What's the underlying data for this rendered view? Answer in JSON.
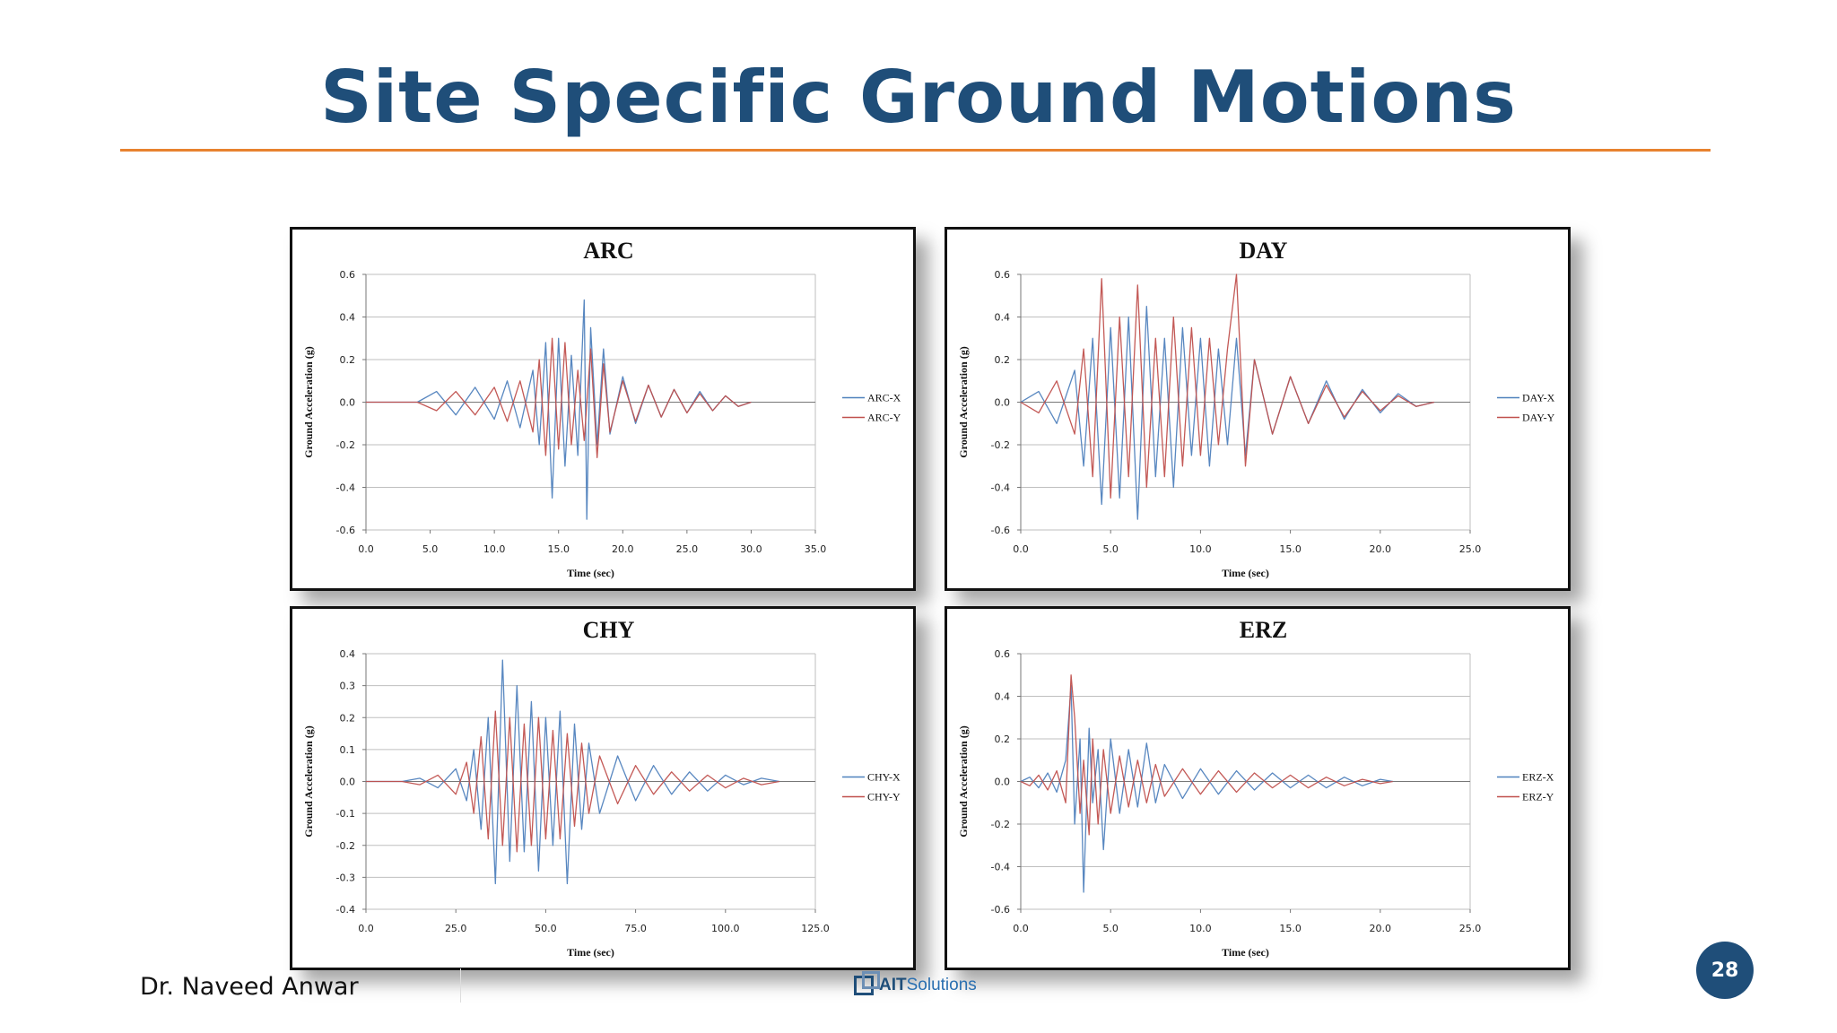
{
  "slide": {
    "title": "Site Specific Ground Motions",
    "author": "Dr. Naveed Anwar",
    "logo_main": "AIT",
    "logo_sub": "Solutions",
    "page_number": "28",
    "accent_color": "#E8822F",
    "title_color": "#1F4E79"
  },
  "chart_data": [
    {
      "type": "line",
      "title": "ARC",
      "xlabel": "Time (sec)",
      "ylabel": "Ground Acceleration (g)",
      "xlim": [
        0,
        35
      ],
      "ylim": [
        -0.6,
        0.6
      ],
      "xticks": [
        "0.0",
        "5.0",
        "10.0",
        "15.0",
        "20.0",
        "25.0",
        "30.0",
        "35.0"
      ],
      "yticks": [
        "0.6",
        "0.4",
        "0.2",
        "0.0",
        "-0.2",
        "-0.4",
        "-0.6"
      ],
      "legend": "right",
      "series": [
        {
          "name": "ARC-X",
          "color": "#4F81BD",
          "x": [
            0,
            4,
            5.5,
            7,
            8.5,
            10,
            11,
            12,
            13,
            13.5,
            14,
            14.5,
            15,
            15.5,
            16,
            16.5,
            17,
            17.2,
            17.5,
            18,
            18.5,
            19,
            20,
            21,
            22,
            23,
            24,
            25,
            26,
            27,
            28,
            29,
            30
          ],
          "y": [
            0,
            0,
            0.05,
            -0.06,
            0.07,
            -0.08,
            0.1,
            -0.12,
            0.15,
            -0.2,
            0.28,
            -0.45,
            0.3,
            -0.3,
            0.22,
            -0.25,
            0.48,
            -0.55,
            0.35,
            -0.2,
            0.25,
            -0.15,
            0.12,
            -0.1,
            0.08,
            -0.07,
            0.06,
            -0.05,
            0.05,
            -0.04,
            0.03,
            -0.02,
            0
          ]
        },
        {
          "name": "ARC-Y",
          "color": "#C0504D",
          "x": [
            0,
            4,
            5.5,
            7,
            8.5,
            10,
            11,
            12,
            13,
            13.5,
            14,
            14.5,
            15,
            15.5,
            16,
            16.5,
            17,
            17.5,
            18,
            18.5,
            19,
            20,
            21,
            22,
            23,
            24,
            25,
            26,
            27,
            28,
            29,
            30
          ],
          "y": [
            0,
            0,
            -0.04,
            0.05,
            -0.06,
            0.07,
            -0.09,
            0.1,
            -0.14,
            0.2,
            -0.25,
            0.3,
            -0.22,
            0.28,
            -0.2,
            0.15,
            -0.18,
            0.25,
            -0.26,
            0.18,
            -0.14,
            0.1,
            -0.09,
            0.08,
            -0.07,
            0.06,
            -0.05,
            0.04,
            -0.04,
            0.03,
            -0.02,
            0
          ]
        }
      ]
    },
    {
      "type": "line",
      "title": "DAY",
      "xlabel": "Time (sec)",
      "ylabel": "Ground Acceleration (g)",
      "xlim": [
        0,
        25
      ],
      "ylim": [
        -0.6,
        0.6
      ],
      "xticks": [
        "0.0",
        "5.0",
        "10.0",
        "15.0",
        "20.0",
        "25.0"
      ],
      "yticks": [
        "0.6",
        "0.4",
        "0.2",
        "0.0",
        "-0.2",
        "-0.4",
        "-0.6"
      ],
      "legend": "right",
      "series": [
        {
          "name": "DAY-X",
          "color": "#4F81BD",
          "x": [
            0,
            1,
            2,
            3,
            3.5,
            4,
            4.5,
            5,
            5.5,
            6,
            6.5,
            7,
            7.5,
            8,
            8.5,
            9,
            9.5,
            10,
            10.5,
            11,
            11.5,
            12,
            12.5,
            13,
            14,
            15,
            16,
            17,
            18,
            19,
            20,
            21,
            22,
            23
          ],
          "y": [
            0,
            0.05,
            -0.1,
            0.15,
            -0.3,
            0.3,
            -0.48,
            0.35,
            -0.45,
            0.4,
            -0.55,
            0.45,
            -0.35,
            0.3,
            -0.4,
            0.35,
            -0.25,
            0.3,
            -0.3,
            0.25,
            -0.2,
            0.3,
            -0.25,
            0.2,
            -0.15,
            0.12,
            -0.1,
            0.1,
            -0.08,
            0.06,
            -0.05,
            0.04,
            -0.02,
            0
          ]
        },
        {
          "name": "DAY-Y",
          "color": "#C0504D",
          "x": [
            0,
            1,
            2,
            3,
            3.5,
            4,
            4.5,
            5,
            5.5,
            6,
            6.5,
            7,
            7.5,
            8,
            8.5,
            9,
            9.5,
            10,
            10.5,
            11,
            11.5,
            12,
            12.5,
            13,
            14,
            15,
            16,
            17,
            18,
            19,
            20,
            21,
            22,
            23
          ],
          "y": [
            0,
            -0.05,
            0.1,
            -0.15,
            0.25,
            -0.35,
            0.58,
            -0.45,
            0.4,
            -0.35,
            0.55,
            -0.4,
            0.3,
            -0.35,
            0.4,
            -0.3,
            0.35,
            -0.25,
            0.3,
            -0.2,
            0.25,
            0.6,
            -0.3,
            0.2,
            -0.15,
            0.12,
            -0.1,
            0.08,
            -0.07,
            0.05,
            -0.04,
            0.03,
            -0.02,
            0
          ]
        }
      ]
    },
    {
      "type": "line",
      "title": "CHY",
      "xlabel": "Time (sec)",
      "ylabel": "Ground Acceleration (g)",
      "xlim": [
        0,
        125
      ],
      "ylim": [
        -0.4,
        0.4
      ],
      "xticks": [
        "0.0",
        "25.0",
        "50.0",
        "75.0",
        "100.0",
        "125.0"
      ],
      "yticks": [
        "0.4",
        "0.3",
        "0.2",
        "0.1",
        "0.0",
        "-0.1",
        "-0.2",
        "-0.3",
        "-0.4"
      ],
      "legend": "right",
      "series": [
        {
          "name": "CHY-X",
          "color": "#4F81BD",
          "x": [
            0,
            10,
            15,
            20,
            25,
            28,
            30,
            32,
            34,
            36,
            38,
            40,
            42,
            44,
            46,
            48,
            50,
            52,
            54,
            56,
            58,
            60,
            62,
            65,
            70,
            75,
            80,
            85,
            90,
            95,
            100,
            105,
            110,
            115
          ],
          "y": [
            0,
            0,
            0.01,
            -0.02,
            0.04,
            -0.06,
            0.1,
            -0.15,
            0.2,
            -0.32,
            0.38,
            -0.25,
            0.3,
            -0.22,
            0.25,
            -0.28,
            0.2,
            -0.2,
            0.22,
            -0.32,
            0.18,
            -0.15,
            0.12,
            -0.1,
            0.08,
            -0.06,
            0.05,
            -0.04,
            0.03,
            -0.03,
            0.02,
            -0.01,
            0.01,
            0
          ]
        },
        {
          "name": "CHY-Y",
          "color": "#C0504D",
          "x": [
            0,
            10,
            15,
            20,
            25,
            28,
            30,
            32,
            34,
            36,
            38,
            40,
            42,
            44,
            46,
            48,
            50,
            52,
            54,
            56,
            58,
            60,
            62,
            65,
            70,
            75,
            80,
            85,
            90,
            95,
            100,
            105,
            110,
            115
          ],
          "y": [
            0,
            0,
            -0.01,
            0.02,
            -0.04,
            0.06,
            -0.1,
            0.14,
            -0.18,
            0.22,
            -0.2,
            0.2,
            -0.22,
            0.18,
            -0.2,
            0.2,
            -0.18,
            0.16,
            -0.18,
            0.15,
            -0.14,
            0.12,
            -0.1,
            0.08,
            -0.07,
            0.05,
            -0.04,
            0.03,
            -0.03,
            0.02,
            -0.02,
            0.01,
            -0.01,
            0
          ]
        }
      ]
    },
    {
      "type": "line",
      "title": "ERZ",
      "xlabel": "Time (sec)",
      "ylabel": "Ground Acceleration (g)",
      "xlim": [
        0,
        25
      ],
      "ylim": [
        -0.6,
        0.6
      ],
      "xticks": [
        "0.0",
        "5.0",
        "10.0",
        "15.0",
        "20.0",
        "25.0"
      ],
      "yticks": [
        "0.6",
        "0.4",
        "0.2",
        "0.0",
        "-0.2",
        "-0.4",
        "-0.6"
      ],
      "legend": "right",
      "series": [
        {
          "name": "ERZ-X",
          "color": "#4F81BD",
          "x": [
            0,
            0.5,
            1,
            1.5,
            2,
            2.5,
            2.8,
            3,
            3.3,
            3.5,
            3.8,
            4,
            4.3,
            4.6,
            5,
            5.5,
            6,
            6.5,
            7,
            7.5,
            8,
            9,
            10,
            11,
            12,
            13,
            14,
            15,
            16,
            17,
            18,
            19,
            20,
            20.7
          ],
          "y": [
            0,
            0.02,
            -0.03,
            0.04,
            -0.05,
            0.1,
            0.45,
            -0.2,
            0.2,
            -0.52,
            0.25,
            -0.1,
            0.15,
            -0.32,
            0.2,
            -0.15,
            0.15,
            -0.12,
            0.18,
            -0.1,
            0.08,
            -0.08,
            0.06,
            -0.06,
            0.05,
            -0.04,
            0.04,
            -0.03,
            0.03,
            -0.03,
            0.02,
            -0.02,
            0.01,
            0
          ]
        },
        {
          "name": "ERZ-Y",
          "color": "#C0504D",
          "x": [
            0,
            0.5,
            1,
            1.5,
            2,
            2.5,
            2.8,
            3,
            3.3,
            3.5,
            3.8,
            4,
            4.3,
            4.6,
            5,
            5.5,
            6,
            6.5,
            7,
            7.5,
            8,
            9,
            10,
            11,
            12,
            13,
            14,
            15,
            16,
            17,
            18,
            19,
            20,
            20.7
          ],
          "y": [
            0,
            -0.02,
            0.03,
            -0.04,
            0.05,
            -0.1,
            0.5,
            0.3,
            -0.15,
            0.1,
            -0.25,
            0.2,
            -0.2,
            0.15,
            -0.15,
            0.12,
            -0.12,
            0.1,
            -0.1,
            0.08,
            -0.07,
            0.06,
            -0.06,
            0.05,
            -0.05,
            0.04,
            -0.03,
            0.03,
            -0.03,
            0.02,
            -0.02,
            0.01,
            -0.01,
            0
          ]
        }
      ]
    }
  ]
}
